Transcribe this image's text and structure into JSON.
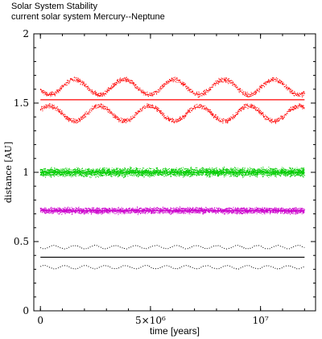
{
  "chart_data": {
    "type": "line",
    "title": "Solar System Stability",
    "subtitle": "current solar system Mercury--Neptune",
    "xlabel": "time [years]",
    "ylabel": "distance [AU]",
    "xlim": [
      -300000,
      12500000
    ],
    "ylim": [
      0,
      2
    ],
    "x_ticks": [
      {
        "value": 0,
        "label": "0"
      },
      {
        "value": 5000000,
        "label": "5×10⁶"
      },
      {
        "value": 10000000,
        "label": "10⁷"
      }
    ],
    "y_ticks": [
      {
        "value": 0,
        "label": "0"
      },
      {
        "value": 0.5,
        "label": "0.5"
      },
      {
        "value": 1,
        "label": "1"
      },
      {
        "value": 1.5,
        "label": "1.5"
      },
      {
        "value": 2,
        "label": "2"
      }
    ],
    "grid": false,
    "legend": "none",
    "x_range_data": [
      0,
      12000000
    ],
    "series": [
      {
        "color": "#000000",
        "mean": 0.387,
        "peri_base": 0.315,
        "peri_amp": 0.012,
        "apo_base": 0.46,
        "apo_amp": 0.012,
        "periods": 13,
        "noise": 0.002
      },
      {
        "color": "#cc00cc",
        "mean": 0.723,
        "peri_base": 0.722,
        "peri_amp": 0.005,
        "apo_base": 0.724,
        "apo_amp": 0.005,
        "periods": 40,
        "noise": 0.022
      },
      {
        "color": "#00cc00",
        "mean": 1.0,
        "peri_base": 0.995,
        "peri_amp": 0.005,
        "apo_base": 1.005,
        "apo_amp": 0.005,
        "periods": 40,
        "noise": 0.03
      },
      {
        "color": "#ff0000",
        "mean": 1.524,
        "peri_base": 1.425,
        "peri_amp": 0.055,
        "apo_base": 1.615,
        "apo_amp": 0.055,
        "periods": 5.3,
        "noise": 0.018
      }
    ]
  },
  "colors": {
    "axis": "#000000",
    "background": "#ffffff"
  }
}
